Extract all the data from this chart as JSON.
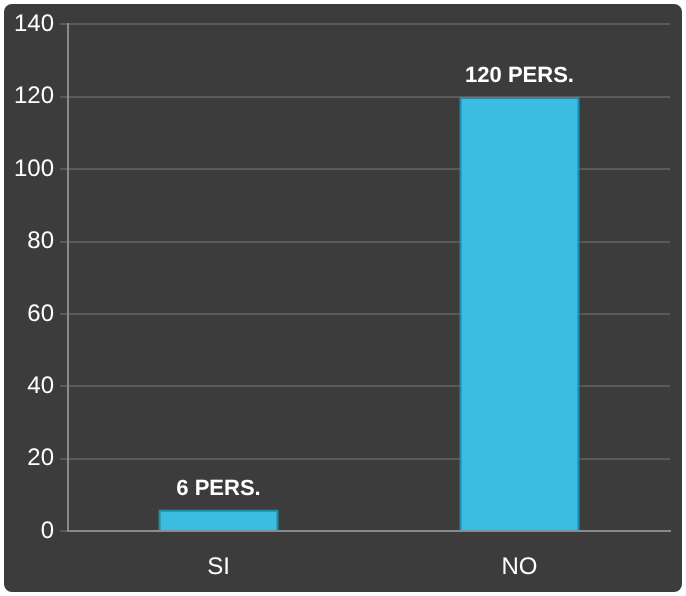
{
  "chart_data": {
    "type": "bar",
    "categories": [
      "SI",
      "NO"
    ],
    "values": [
      6,
      120
    ],
    "color": "#3bbde2",
    "value_labels": [
      "6 PERS.",
      "120 PERS."
    ],
    "ylim": [
      0,
      140
    ],
    "yticks": [
      0,
      20,
      40,
      60,
      80,
      100,
      120,
      140
    ],
    "grid": "y",
    "legend": false
  }
}
